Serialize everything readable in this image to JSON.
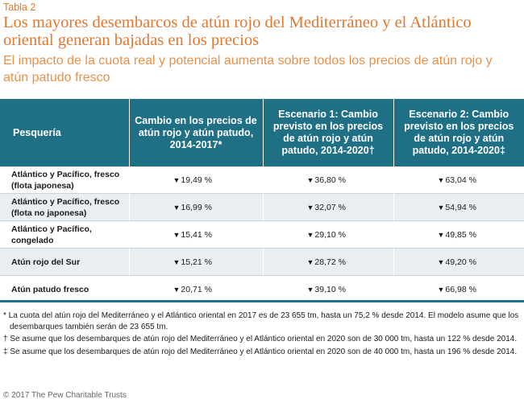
{
  "label": "Tabla 2",
  "title": "Los mayores desembarcos de atún rojo del Mediterráneo y el Atlántico oriental generan bajadas en los precios",
  "subtitle": "El impacto de la cuota real y potencial aumenta sobre todos los precios de atún rojo y atún patudo fresco",
  "table": {
    "headers": [
      "Pesquería",
      "Cambio en los precios de atún rojo y atún patudo, 2014-2017*",
      "Escenario 1: Cambio previsto en los precios de atún rojo y atún patudo, 2014-2020†",
      "Escenario 2: Cambio previsto en los precios de atún rojo y atún patudo, 2014-2020‡"
    ],
    "down_symbol": "▼",
    "rows": [
      {
        "fishery": "Atlántico y Pacífico, fresco (flota japonesa)",
        "c1": "19,49 %",
        "c2": "36,80 %",
        "c3": "63,04 %"
      },
      {
        "fishery": "Atlántico y Pacífico, fresco (flota no japonesa)",
        "c1": "16,99 %",
        "c2": "32,07 %",
        "c3": "54,94 %"
      },
      {
        "fishery": "Atlántico y Pacífico, congelado",
        "c1": "15,41 %",
        "c2": "29,10 %",
        "c3": "49,85 %"
      },
      {
        "fishery": "Atún rojo del Sur",
        "c1": "15,21 %",
        "c2": "28,72 %",
        "c3": "49,20 %"
      },
      {
        "fishery": "Atún patudo fresco",
        "c1": "20,71 %",
        "c2": "39,10 %",
        "c3": "66,98 %"
      }
    ]
  },
  "notes": [
    "* La cuota del atún rojo del Mediterráneo y el Atlántico oriental en 2017 es de 23 655 tm, hasta un 75,2 % desde 2014. El modelo asume que los desembarques también serán de 23 655 tm.",
    "† Se asume que los desembarques de atún rojo del Mediterráneo y el Atlántico oriental en 2020 son de 30 000 tm, hasta un 122 % desde 2014.",
    "‡ Se asume que los desembarques de atún rojo del Mediterráneo y el Atlántico oriental en 2020 son de 40 000 tm, hasta un 196 % desde 2014."
  ],
  "copyright": "© 2017 The Pew Charitable Trusts"
}
